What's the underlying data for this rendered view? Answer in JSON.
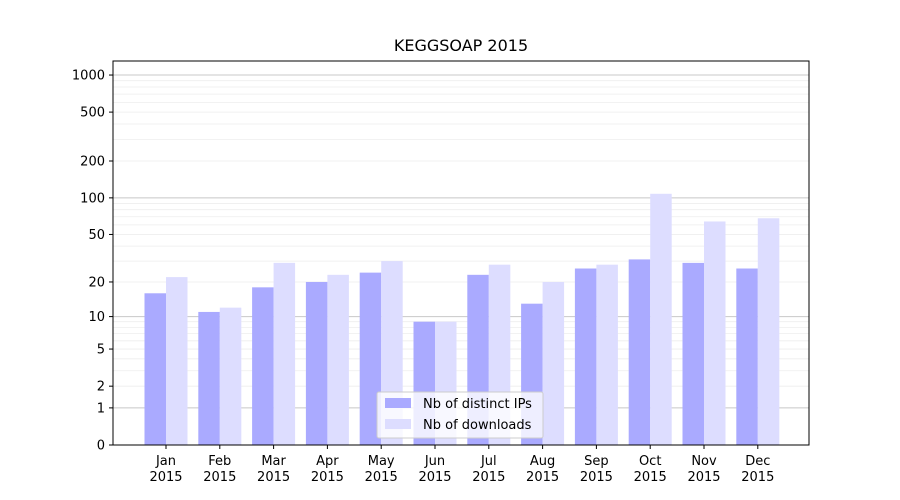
{
  "chart_data": {
    "type": "bar",
    "title": "KEGGSOAP 2015",
    "y_scale": "symlog",
    "ylim": [
      0,
      1300
    ],
    "y_ticks": [
      {
        "value": 0,
        "label": "0"
      },
      {
        "value": 1,
        "label": "1"
      },
      {
        "value": 2,
        "label": "2"
      },
      {
        "value": 5,
        "label": "5"
      },
      {
        "value": 10,
        "label": "10"
      },
      {
        "value": 20,
        "label": "20"
      },
      {
        "value": 50,
        "label": "50"
      },
      {
        "value": 100,
        "label": "100"
      },
      {
        "value": 200,
        "label": "200"
      },
      {
        "value": 500,
        "label": "500"
      },
      {
        "value": 1000,
        "label": "1000"
      }
    ],
    "grid": true,
    "categories": [
      [
        "Jan",
        "2015"
      ],
      [
        "Feb",
        "2015"
      ],
      [
        "Mar",
        "2015"
      ],
      [
        "Apr",
        "2015"
      ],
      [
        "May",
        "2015"
      ],
      [
        "Jun",
        "2015"
      ],
      [
        "Jul",
        "2015"
      ],
      [
        "Aug",
        "2015"
      ],
      [
        "Sep",
        "2015"
      ],
      [
        "Oct",
        "2015"
      ],
      [
        "Nov",
        "2015"
      ],
      [
        "Dec",
        "2015"
      ]
    ],
    "series": [
      {
        "name": "Nb of distinct IPs",
        "color": "#aaaaff",
        "values": [
          16,
          11,
          18,
          20,
          24,
          9,
          23,
          13,
          26,
          31,
          29,
          26
        ]
      },
      {
        "name": "Nb of downloads",
        "color": "#ddddff",
        "values": [
          22,
          12,
          29,
          23,
          30,
          9,
          28,
          20,
          28,
          108,
          64,
          68
        ]
      }
    ],
    "legend_position": "bottom-center"
  }
}
